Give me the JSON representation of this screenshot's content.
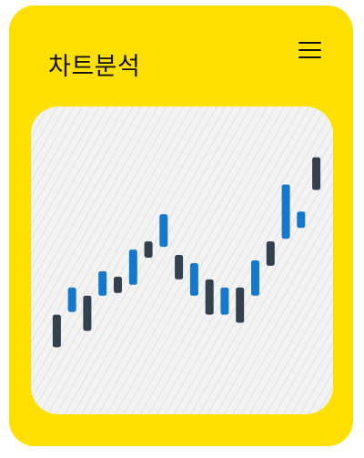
{
  "header": {
    "title": "차트분석",
    "menu_icon": "hamburger-menu-icon"
  },
  "colors": {
    "card_background": "#FFE000",
    "panel_background": "#F3F3F3",
    "down": "#33404E",
    "up": "#1478CC"
  },
  "chart_data": {
    "type": "candlestick",
    "ylim": [
      0,
      100
    ],
    "candles": [
      {
        "low": 18,
        "high": 30,
        "dir": "down"
      },
      {
        "low": 31,
        "high": 40,
        "dir": "up"
      },
      {
        "low": 24,
        "high": 37,
        "dir": "down"
      },
      {
        "low": 37,
        "high": 46,
        "dir": "up"
      },
      {
        "low": 38,
        "high": 44,
        "dir": "down"
      },
      {
        "low": 41,
        "high": 54,
        "dir": "up"
      },
      {
        "low": 51,
        "high": 57,
        "dir": "down"
      },
      {
        "low": 55,
        "high": 67,
        "dir": "up"
      },
      {
        "low": 43,
        "high": 52,
        "dir": "down"
      },
      {
        "low": 37,
        "high": 49,
        "dir": "up"
      },
      {
        "low": 30,
        "high": 43,
        "dir": "down"
      },
      {
        "low": 30,
        "high": 40,
        "dir": "up"
      },
      {
        "low": 27,
        "high": 40,
        "dir": "down"
      },
      {
        "low": 37,
        "high": 50,
        "dir": "up"
      },
      {
        "low": 48,
        "high": 57,
        "dir": "down"
      },
      {
        "low": 58,
        "high": 78,
        "dir": "up"
      },
      {
        "low": 62,
        "high": 68,
        "dir": "up"
      },
      {
        "low": 76,
        "high": 88,
        "dir": "down"
      }
    ]
  }
}
